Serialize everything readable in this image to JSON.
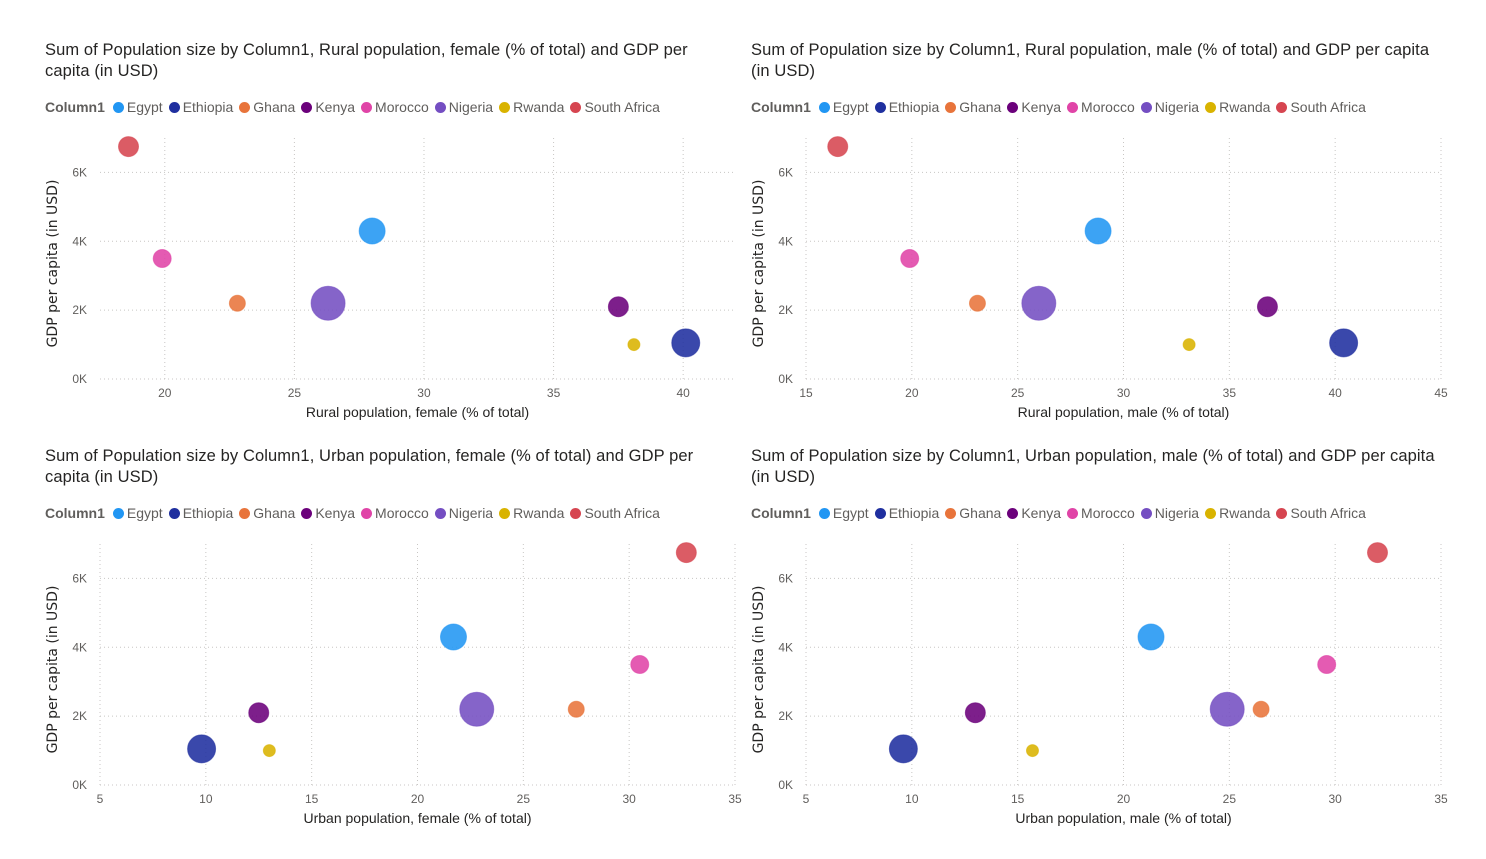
{
  "legend_title": "Column1",
  "series_colors": {
    "Egypt": "#2196F3",
    "Ethiopia": "#1F2F9F",
    "Ghana": "#E8743B",
    "Kenya": "#6B007B",
    "Morocco": "#E044A7",
    "Nigeria": "#744EC2",
    "Rwanda": "#D9B300",
    "South Africa": "#D64550"
  },
  "chart_data": [
    {
      "type": "scatter",
      "title": "Sum of Population size by Column1, Rural population, female (% of total) and GDP per capita (in USD)",
      "xlabel": "Rural population, female (% of total)",
      "ylabel": "GDP per capita (in USD)",
      "xlim": [
        17.5,
        42
      ],
      "ylim": [
        0,
        7000
      ],
      "xticks": [
        20,
        25,
        30,
        35,
        40
      ],
      "yticks": [
        0,
        2000,
        4000,
        6000
      ],
      "ytick_labels": [
        "0K",
        "2K",
        "4K",
        "6K"
      ],
      "grid": true,
      "legend_position": "top-left",
      "points": [
        {
          "name": "Egypt",
          "x": 28.0,
          "y": 4300,
          "size": 13
        },
        {
          "name": "Ethiopia",
          "x": 40.1,
          "y": 1050,
          "size": 14
        },
        {
          "name": "Ghana",
          "x": 22.8,
          "y": 2200,
          "size": 8
        },
        {
          "name": "Kenya",
          "x": 37.5,
          "y": 2100,
          "size": 10
        },
        {
          "name": "Morocco",
          "x": 19.9,
          "y": 3500,
          "size": 9
        },
        {
          "name": "Nigeria",
          "x": 26.3,
          "y": 2200,
          "size": 17
        },
        {
          "name": "Rwanda",
          "x": 38.1,
          "y": 1000,
          "size": 6
        },
        {
          "name": "South Africa",
          "x": 18.6,
          "y": 6750,
          "size": 10
        }
      ]
    },
    {
      "type": "scatter",
      "title": "Sum of Population size by Column1, Rural population, male (% of total) and GDP per capita (in USD)",
      "xlabel": "Rural population, male (% of total)",
      "ylabel": "GDP per capita (in USD)",
      "xlim": [
        15,
        45
      ],
      "ylim": [
        0,
        7000
      ],
      "xticks": [
        15,
        20,
        25,
        30,
        35,
        40,
        45
      ],
      "yticks": [
        0,
        2000,
        4000,
        6000
      ],
      "ytick_labels": [
        "0K",
        "2K",
        "4K",
        "6K"
      ],
      "grid": true,
      "legend_position": "top-left",
      "points": [
        {
          "name": "Egypt",
          "x": 28.8,
          "y": 4300,
          "size": 13
        },
        {
          "name": "Ethiopia",
          "x": 40.4,
          "y": 1050,
          "size": 14
        },
        {
          "name": "Ghana",
          "x": 23.1,
          "y": 2200,
          "size": 8
        },
        {
          "name": "Kenya",
          "x": 36.8,
          "y": 2100,
          "size": 10
        },
        {
          "name": "Morocco",
          "x": 19.9,
          "y": 3500,
          "size": 9
        },
        {
          "name": "Nigeria",
          "x": 26.0,
          "y": 2200,
          "size": 17
        },
        {
          "name": "Rwanda",
          "x": 33.1,
          "y": 1000,
          "size": 6
        },
        {
          "name": "South Africa",
          "x": 16.5,
          "y": 6750,
          "size": 10
        }
      ]
    },
    {
      "type": "scatter",
      "title": "Sum of Population size by Column1, Urban population, female (% of total) and GDP per capita (in USD)",
      "xlabel": "Urban population, female (% of total)",
      "ylabel": "GDP per capita (in USD)",
      "xlim": [
        5,
        35
      ],
      "ylim": [
        0,
        7000
      ],
      "xticks": [
        5,
        10,
        15,
        20,
        25,
        30,
        35
      ],
      "yticks": [
        0,
        2000,
        4000,
        6000
      ],
      "ytick_labels": [
        "0K",
        "2K",
        "4K",
        "6K"
      ],
      "grid": true,
      "legend_position": "top-left",
      "points": [
        {
          "name": "Egypt",
          "x": 21.7,
          "y": 4300,
          "size": 13
        },
        {
          "name": "Ethiopia",
          "x": 9.8,
          "y": 1050,
          "size": 14
        },
        {
          "name": "Ghana",
          "x": 27.5,
          "y": 2200,
          "size": 8
        },
        {
          "name": "Kenya",
          "x": 12.5,
          "y": 2100,
          "size": 10
        },
        {
          "name": "Morocco",
          "x": 30.5,
          "y": 3500,
          "size": 9
        },
        {
          "name": "Nigeria",
          "x": 22.8,
          "y": 2200,
          "size": 17
        },
        {
          "name": "Rwanda",
          "x": 13.0,
          "y": 1000,
          "size": 6
        },
        {
          "name": "South Africa",
          "x": 32.7,
          "y": 6750,
          "size": 10
        }
      ]
    },
    {
      "type": "scatter",
      "title": "Sum of Population size by Column1, Urban population, male (% of total) and GDP per capita (in USD)",
      "xlabel": "Urban population, male (% of total)",
      "ylabel": "GDP per capita (in USD)",
      "xlim": [
        5,
        35
      ],
      "ylim": [
        0,
        7000
      ],
      "xticks": [
        5,
        10,
        15,
        20,
        25,
        30,
        35
      ],
      "yticks": [
        0,
        2000,
        4000,
        6000
      ],
      "ytick_labels": [
        "0K",
        "2K",
        "4K",
        "6K"
      ],
      "grid": true,
      "legend_position": "top-left",
      "points": [
        {
          "name": "Egypt",
          "x": 21.3,
          "y": 4300,
          "size": 13
        },
        {
          "name": "Ethiopia",
          "x": 9.6,
          "y": 1050,
          "size": 14
        },
        {
          "name": "Ghana",
          "x": 26.5,
          "y": 2200,
          "size": 8
        },
        {
          "name": "Kenya",
          "x": 13.0,
          "y": 2100,
          "size": 10
        },
        {
          "name": "Morocco",
          "x": 29.6,
          "y": 3500,
          "size": 9
        },
        {
          "name": "Nigeria",
          "x": 24.9,
          "y": 2200,
          "size": 17
        },
        {
          "name": "Rwanda",
          "x": 15.7,
          "y": 1000,
          "size": 6
        },
        {
          "name": "South Africa",
          "x": 32.0,
          "y": 6750,
          "size": 10
        }
      ]
    }
  ]
}
